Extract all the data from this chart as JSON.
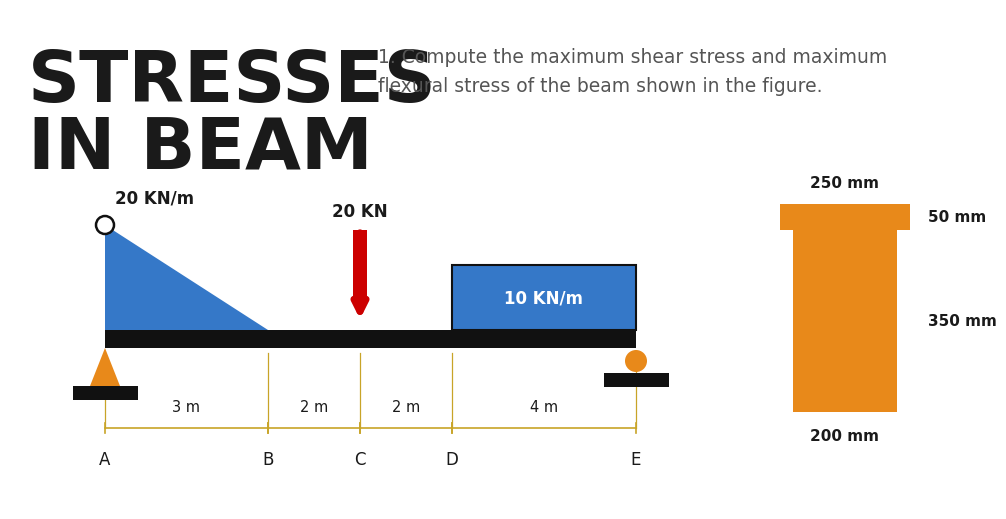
{
  "title_line1": "STRESSES",
  "title_line2": "IN BEAM",
  "problem_text": "1. Compute the maximum shear stress and maximum\nflexural stress of the beam shown in the figure.",
  "bg_color": "#ffffff",
  "title_color": "#1a1a1a",
  "problem_color": "#555555",
  "beam_color": "#111111",
  "blue_color": "#3578c8",
  "orange_color": "#e8891a",
  "red_color": "#cc0000",
  "dim_color": "#c8a428",
  "supports_color": "#111111",
  "load_20kn_label": "20 KN/m",
  "load_10kn_label": "10 KN/m",
  "point_load_label": "20 KN",
  "cross_section": {
    "label_top": "250 mm",
    "label_right_top": "50 mm",
    "label_right_bot": "350 mm",
    "label_bot": "200 mm"
  }
}
